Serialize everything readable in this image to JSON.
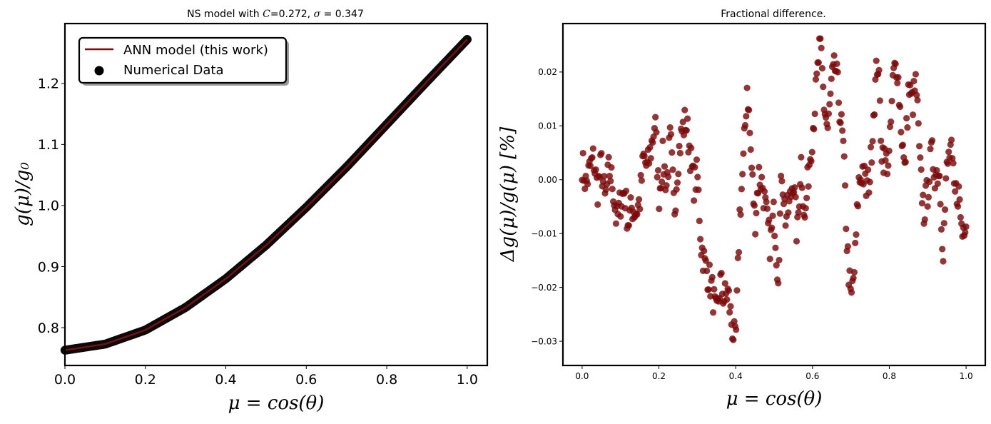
{
  "colors": {
    "line": "#7a0e0e",
    "scatter_left": "#0a0a0a",
    "scatter_right": "#7d0a0a",
    "frame": "#000000"
  },
  "chart_data": [
    {
      "type": "line",
      "title_prefix": "NS model with ",
      "title_C_symbol": "C",
      "title_C_value": "=0.272, ",
      "title_sigma_symbol": "σ",
      "title_sigma_value": " = 0.347",
      "xlabel": "μ = cos(θ)",
      "ylabel": "g(μ)/g₀",
      "xlim": [
        0.0,
        1.05
      ],
      "ylim": [
        0.738,
        1.298
      ],
      "xticks": [
        0.0,
        0.2,
        0.4,
        0.6,
        0.8,
        1.0
      ],
      "xtick_labels": [
        "0.0",
        "0.2",
        "0.4",
        "0.6",
        "0.8",
        "1.0"
      ],
      "yticks": [
        0.8,
        0.9,
        1.0,
        1.1,
        1.2
      ],
      "ytick_labels": [
        "0.8",
        "0.9",
        "1.0",
        "1.1",
        "1.2"
      ],
      "legend": [
        "ANN model (this work)",
        "Numerical Data"
      ],
      "legend_position": "upper-left",
      "curve": {
        "x": [
          0.0,
          0.1,
          0.2,
          0.3,
          0.4,
          0.5,
          0.6,
          0.7,
          0.8,
          0.9,
          1.0
        ],
        "y": [
          0.763,
          0.773,
          0.796,
          0.833,
          0.88,
          0.935,
          0.997,
          1.063,
          1.133,
          1.203,
          1.272
        ]
      },
      "points": {
        "x_start": 0.0,
        "x_end": 1.0,
        "count": 400
      }
    },
    {
      "type": "scatter",
      "title": "Fractional difference.",
      "xlabel": "μ = cos(θ)",
      "ylabel": "Δg(μ)/g(μ)  [%]",
      "xlim": [
        -0.05,
        1.05
      ],
      "ylim": [
        -0.0345,
        0.029
      ],
      "xticks": [
        0.0,
        0.2,
        0.4,
        0.6,
        0.8,
        1.0
      ],
      "xtick_labels": [
        "0.0",
        "0.2",
        "0.4",
        "0.6",
        "0.8",
        "1.0"
      ],
      "yticks": [
        -0.03,
        -0.02,
        -0.01,
        0.0,
        0.01,
        0.02
      ],
      "ytick_labels": [
        "−0.03",
        "−0.02",
        "−0.01",
        "0.00",
        "0.01",
        "0.02"
      ],
      "x": [
        0.0,
        0.01,
        0.02,
        0.03,
        0.04,
        0.05,
        0.06,
        0.07,
        0.08,
        0.09,
        0.1,
        0.11,
        0.12,
        0.13,
        0.14,
        0.15,
        0.16,
        0.17,
        0.18,
        0.19,
        0.2,
        0.21,
        0.22,
        0.23,
        0.24,
        0.25,
        0.26,
        0.27,
        0.28,
        0.29,
        0.3,
        0.31,
        0.32,
        0.33,
        0.34,
        0.35,
        0.36,
        0.37,
        0.38,
        0.39,
        0.4,
        0.41,
        0.42,
        0.43,
        0.44,
        0.45,
        0.46,
        0.47,
        0.48,
        0.49,
        0.5,
        0.51,
        0.52,
        0.53,
        0.54,
        0.55,
        0.56,
        0.57,
        0.58,
        0.59,
        0.6,
        0.61,
        0.62,
        0.63,
        0.64,
        0.65,
        0.66,
        0.67,
        0.68,
        0.69,
        0.7,
        0.71,
        0.72,
        0.73,
        0.74,
        0.75,
        0.76,
        0.77,
        0.78,
        0.79,
        0.8,
        0.81,
        0.82,
        0.83,
        0.84,
        0.85,
        0.86,
        0.87,
        0.88,
        0.89,
        0.9,
        0.91,
        0.92,
        0.93,
        0.94,
        0.95,
        0.96,
        0.97,
        0.98,
        0.99,
        1.0
      ],
      "y": [
        0.0032,
        -0.001,
        0.002,
        0.004,
        -0.002,
        0.003,
        -0.004,
        0.002,
        -0.001,
        -0.008,
        -0.004,
        -0.002,
        -0.008,
        -0.005,
        -0.006,
        -0.004,
        0.004,
        0.002,
        0.006,
        0.011,
        -0.003,
        0.004,
        -0.001,
        0.008,
        -0.006,
        0.004,
        0.009,
        0.011,
        0.006,
        -0.001,
        0.001,
        -0.012,
        -0.016,
        -0.018,
        -0.021,
        -0.026,
        -0.019,
        -0.022,
        -0.021,
        -0.027,
        -0.031,
        -0.007,
        0.003,
        0.018,
        0.004,
        -0.008,
        0.001,
        -0.001,
        -0.007,
        -0.012,
        -0.006,
        -0.018,
        0.002,
        -0.007,
        -0.005,
        0.001,
        -0.011,
        0.004,
        -0.008,
        0.002,
        0.009,
        0.017,
        0.026,
        0.014,
        0.009,
        0.018,
        0.021,
        0.014,
        0.006,
        -0.012,
        -0.023,
        -0.016,
        -0.001,
        0.002,
        -0.002,
        0.001,
        0.014,
        0.023,
        0.006,
        0.003,
        0.004,
        0.019,
        0.022,
        0.011,
        0.001,
        0.017,
        0.014,
        0.018,
        0.002,
        -0.006,
        -0.002,
        0.005,
        0.001,
        0.002,
        -0.013,
        0.002,
        0.006,
        -0.003,
        -0.002,
        -0.01,
        -0.006
      ]
    }
  ]
}
